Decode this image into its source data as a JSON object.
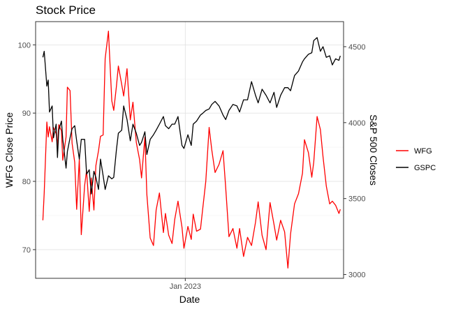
{
  "chart_data": {
    "type": "line",
    "title": "Stock Price",
    "xlabel": "Date",
    "ylabel": "WFG Close Price",
    "y2label": "S&P 500 Closes",
    "x_ticks": [
      "Jan 2023"
    ],
    "y_ticks": [
      "70",
      "80",
      "90",
      "100"
    ],
    "y2_ticks": [
      "3000",
      "3500",
      "4000",
      "4500"
    ],
    "ylim": [
      65.8,
      103.4
    ],
    "y2lim": [
      2975,
      4665
    ],
    "xlim": [
      "2022-05-20",
      "2023-08-28"
    ],
    "grid": true,
    "legend": "right",
    "series": [
      {
        "name": "WFG",
        "axis": "left",
        "color": "#ff0000",
        "dates": [
          "2022-05-31",
          "2022-06-02",
          "2022-06-06",
          "2022-06-08",
          "2022-06-10",
          "2022-06-14",
          "2022-06-16",
          "2022-06-20",
          "2022-06-22",
          "2022-06-24",
          "2022-06-28",
          "2022-06-30",
          "2022-07-05",
          "2022-07-07",
          "2022-07-11",
          "2022-07-14",
          "2022-07-18",
          "2022-07-21",
          "2022-07-25",
          "2022-07-28",
          "2022-08-02",
          "2022-08-05",
          "2022-08-09",
          "2022-08-12",
          "2022-08-16",
          "2022-08-19",
          "2022-08-23",
          "2022-08-26",
          "2022-08-30",
          "2022-09-02",
          "2022-09-07",
          "2022-09-12",
          "2022-09-15",
          "2022-09-19",
          "2022-09-22",
          "2022-09-27",
          "2022-09-30",
          "2022-10-05",
          "2022-10-10",
          "2022-10-14",
          "2022-10-19",
          "2022-10-24",
          "2022-10-27",
          "2022-11-01",
          "2022-11-04",
          "2022-11-09",
          "2022-11-14",
          "2022-11-18",
          "2022-11-23",
          "2022-11-29",
          "2022-12-02",
          "2022-12-07",
          "2022-12-12",
          "2022-12-16",
          "2022-12-21",
          "2022-12-27",
          "2022-12-30",
          "2023-01-05",
          "2023-01-10",
          "2023-01-13",
          "2023-01-18",
          "2023-01-24",
          "2023-01-27",
          "2023-02-01",
          "2023-02-06",
          "2023-02-10",
          "2023-02-15",
          "2023-02-21",
          "2023-02-27",
          "2023-03-03",
          "2023-03-08",
          "2023-03-14",
          "2023-03-20",
          "2023-03-24",
          "2023-03-30",
          "2023-04-05",
          "2023-04-11",
          "2023-04-17",
          "2023-04-21",
          "2023-04-27",
          "2023-05-03",
          "2023-05-09",
          "2023-05-15",
          "2023-05-19",
          "2023-05-25",
          "2023-05-31",
          "2023-06-05",
          "2023-06-09",
          "2023-06-15",
          "2023-06-21",
          "2023-06-27",
          "2023-06-30",
          "2023-07-06",
          "2023-07-11",
          "2023-07-14",
          "2023-07-19",
          "2023-07-24",
          "2023-07-28",
          "2023-08-02",
          "2023-08-07",
          "2023-08-11",
          "2023-08-16",
          "2023-08-21",
          "2023-08-23"
        ],
        "values": [
          74.3,
          78.3,
          88.7,
          86.5,
          88.0,
          85.8,
          87.9,
          87.0,
          85.2,
          88.3,
          87.4,
          83.1,
          86.5,
          93.8,
          93.3,
          85.6,
          82.8,
          75.9,
          83.3,
          72.2,
          79.4,
          81.6,
          75.6,
          80.5,
          75.8,
          82.3,
          84.5,
          86.6,
          86.8,
          98.0,
          102.0,
          91.8,
          90.4,
          93.9,
          96.9,
          94.2,
          92.5,
          96.5,
          89.0,
          91.6,
          85.7,
          83.2,
          80.5,
          86.5,
          78.1,
          71.7,
          70.6,
          75.8,
          78.3,
          72.5,
          75.3,
          72.1,
          70.9,
          74.4,
          77.1,
          73.3,
          70.2,
          73.4,
          71.5,
          75.2,
          72.7,
          73.0,
          75.7,
          80.0,
          87.9,
          84.6,
          81.3,
          82.5,
          84.5,
          79.1,
          71.9,
          73.1,
          70.2,
          73.1,
          69.0,
          71.8,
          70.6,
          74.0,
          77.0,
          72.1,
          70.0,
          76.9,
          73.7,
          71.4,
          74.3,
          72.6,
          67.3,
          72.3,
          76.7,
          78.2,
          81.2,
          86.1,
          84.2,
          80.6,
          82.8,
          89.5,
          87.6,
          83.6,
          79.3,
          76.7,
          77.1,
          76.5,
          75.3,
          75.9
        ]
      },
      {
        "name": "GSPC",
        "axis": "right",
        "color": "#000000",
        "dates": [
          "2022-05-31",
          "2022-06-02",
          "2022-06-06",
          "2022-06-08",
          "2022-06-10",
          "2022-06-14",
          "2022-06-16",
          "2022-06-20",
          "2022-06-22",
          "2022-06-24",
          "2022-06-28",
          "2022-06-30",
          "2022-07-05",
          "2022-07-07",
          "2022-07-11",
          "2022-07-14",
          "2022-07-18",
          "2022-07-21",
          "2022-07-25",
          "2022-07-28",
          "2022-08-02",
          "2022-08-05",
          "2022-08-09",
          "2022-08-12",
          "2022-08-16",
          "2022-08-19",
          "2022-08-23",
          "2022-08-26",
          "2022-08-30",
          "2022-09-02",
          "2022-09-07",
          "2022-09-12",
          "2022-09-15",
          "2022-09-19",
          "2022-09-22",
          "2022-09-27",
          "2022-09-30",
          "2022-10-05",
          "2022-10-10",
          "2022-10-14",
          "2022-10-19",
          "2022-10-24",
          "2022-10-27",
          "2022-11-01",
          "2022-11-04",
          "2022-11-09",
          "2022-11-14",
          "2022-11-18",
          "2022-11-23",
          "2022-11-29",
          "2022-12-02",
          "2022-12-07",
          "2022-12-12",
          "2022-12-16",
          "2022-12-21",
          "2022-12-27",
          "2022-12-30",
          "2023-01-05",
          "2023-01-10",
          "2023-01-13",
          "2023-01-18",
          "2023-01-24",
          "2023-01-27",
          "2023-02-01",
          "2023-02-06",
          "2023-02-10",
          "2023-02-15",
          "2023-02-21",
          "2023-02-27",
          "2023-03-03",
          "2023-03-08",
          "2023-03-14",
          "2023-03-20",
          "2023-03-24",
          "2023-03-30",
          "2023-04-05",
          "2023-04-11",
          "2023-04-17",
          "2023-04-21",
          "2023-04-27",
          "2023-05-03",
          "2023-05-09",
          "2023-05-15",
          "2023-05-19",
          "2023-05-25",
          "2023-05-31",
          "2023-06-05",
          "2023-06-09",
          "2023-06-15",
          "2023-06-21",
          "2023-06-27",
          "2023-06-30",
          "2023-07-06",
          "2023-07-11",
          "2023-07-14",
          "2023-07-19",
          "2023-07-24",
          "2023-07-28",
          "2023-08-02",
          "2023-08-07",
          "2023-08-11",
          "2023-08-16",
          "2023-08-21",
          "2023-08-23"
        ],
        "values": [
          4430,
          4470,
          4240,
          4280,
          4070,
          4110,
          3900,
          3990,
          3770,
          3950,
          4010,
          3890,
          3700,
          3810,
          3900,
          3960,
          3980,
          3880,
          3760,
          3890,
          3890,
          3660,
          3690,
          3530,
          3680,
          3640,
          3560,
          3760,
          3650,
          3560,
          3650,
          3630,
          3640,
          3820,
          3930,
          3950,
          4110,
          4020,
          3880,
          3990,
          3930,
          3850,
          3870,
          3940,
          3790,
          3890,
          3920,
          3950,
          3990,
          4040,
          3980,
          3960,
          3990,
          3990,
          4040,
          3850,
          3830,
          3920,
          3850,
          3990,
          4010,
          4050,
          4060,
          4080,
          4090,
          4120,
          4140,
          4110,
          4050,
          4020,
          4080,
          4120,
          4110,
          4070,
          4150,
          4150,
          4270,
          4180,
          4130,
          4220,
          4180,
          4130,
          4200,
          4100,
          4180,
          4230,
          4230,
          4210,
          4310,
          4340,
          4400,
          4420,
          4450,
          4460,
          4540,
          4560,
          4470,
          4500,
          4430,
          4440,
          4380,
          4420,
          4410,
          4440
        ]
      }
    ]
  }
}
